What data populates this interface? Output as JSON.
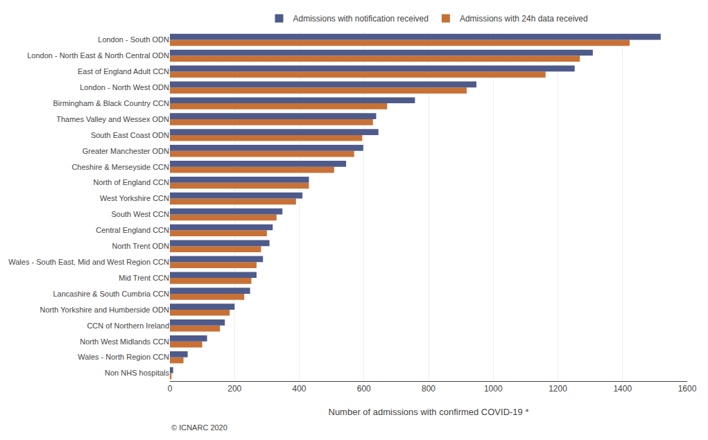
{
  "chart_data": {
    "type": "bar",
    "orientation": "horizontal",
    "categories": [
      "Non NHS hospitals",
      "Wales - North Region CCN",
      "North West Midlands CCN",
      "CCN of Northern Ireland",
      "North Yorkshire and Humberside ODN",
      "Lancashire & South Cumbria CCN",
      "Mid Trent CCN",
      "Wales - South East, Mid and West Region CCN",
      "North Trent ODN",
      "Central England CCN",
      "South West CCN",
      "West Yorkshire CCN",
      "North of England CCN",
      "Cheshire & Merseyside CCN",
      "Greater Manchester ODN",
      "South East Coast ODN",
      "Thames Valley and Wessex ODN",
      "Birmingham & Black Country CCN",
      "London - North West ODN",
      "East of England Adult CCN",
      "London - North East & North Central ODN",
      "London - South ODN"
    ],
    "series": [
      {
        "name": "Admissions with notification received",
        "color": "#4e5b8a",
        "values": [
          10,
          55,
          115,
          170,
          200,
          248,
          268,
          288,
          308,
          318,
          348,
          410,
          430,
          545,
          598,
          645,
          638,
          758,
          948,
          1252,
          1308,
          1518
        ]
      },
      {
        "name": "Admissions with 24h data received",
        "color": "#c87137",
        "values": [
          5,
          42,
          100,
          155,
          185,
          230,
          252,
          268,
          282,
          300,
          330,
          390,
          430,
          508,
          570,
          595,
          628,
          672,
          918,
          1162,
          1268,
          1422
        ]
      }
    ],
    "xlabel": "Number of admissions with confirmed COVID-19 *",
    "xlim": [
      0,
      1600
    ],
    "xticks": [
      0,
      200,
      400,
      600,
      800,
      1000,
      1200,
      1400,
      1600
    ],
    "grid": true,
    "legend": "top",
    "annotations": [
      "© ICNARC 2020"
    ]
  }
}
